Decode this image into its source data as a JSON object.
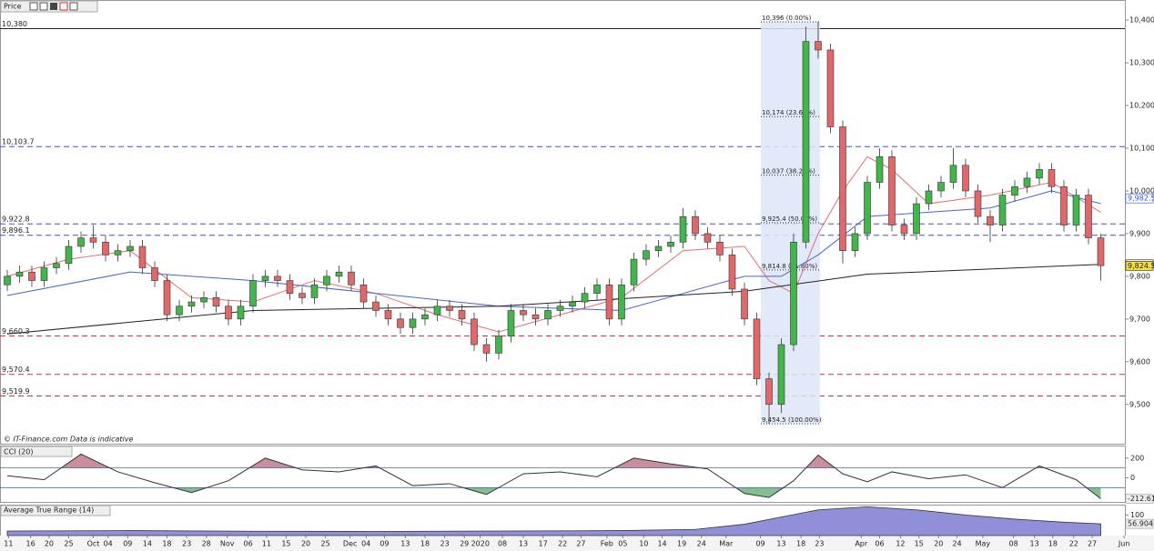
{
  "chart_data": [
    {
      "type": "candlestick",
      "title": "Price",
      "footnote": "© IT-Finance.com  Data is indicative",
      "up_color": "#43b54a",
      "down_color": "#e0686a",
      "open": [
        9780,
        9800,
        9810,
        9790,
        9820,
        9830,
        9870,
        9890,
        9880,
        9850,
        9860,
        9870,
        9820,
        9790,
        9710,
        9730,
        9740,
        9750,
        9730,
        9700,
        9730,
        9790,
        9800,
        9790,
        9760,
        9750,
        9780,
        9800,
        9810,
        9780,
        9740,
        9720,
        9700,
        9680,
        9700,
        9710,
        9730,
        9720,
        9700,
        9640,
        9620,
        9660,
        9720,
        9710,
        9700,
        9720,
        9730,
        9740,
        9760,
        9780,
        9700,
        9780,
        9840,
        9860,
        9870,
        9880,
        9940,
        9900,
        9880,
        9850,
        9770,
        9700,
        9560,
        9500,
        9640,
        9880,
        10350,
        10330,
        10150,
        9860,
        9900,
        10020,
        10080,
        9920,
        9900,
        9970,
        10000,
        10020,
        10060,
        10000,
        9940,
        9920,
        9990,
        10010,
        10030,
        10050,
        10010,
        9920,
        9990,
        9890
      ],
      "high": [
        9815,
        9825,
        9825,
        9835,
        9845,
        9885,
        9905,
        9920,
        9895,
        9875,
        9885,
        9885,
        9835,
        9805,
        9745,
        9755,
        9765,
        9765,
        9745,
        9745,
        9805,
        9815,
        9815,
        9805,
        9775,
        9795,
        9815,
        9825,
        9825,
        9795,
        9755,
        9735,
        9715,
        9715,
        9725,
        9745,
        9745,
        9735,
        9715,
        9655,
        9675,
        9735,
        9735,
        9725,
        9735,
        9745,
        9755,
        9775,
        9795,
        9795,
        9795,
        9855,
        9875,
        9885,
        9895,
        9960,
        9955,
        9915,
        9895,
        9865,
        9785,
        9715,
        9575,
        9655,
        9900,
        10385,
        10396,
        10345,
        10165,
        9915,
        10035,
        10100,
        10095,
        9935,
        9985,
        10015,
        10035,
        10100,
        10075,
        10015,
        9955,
        10005,
        10025,
        10045,
        10065,
        10065,
        10025,
        10005,
        10005,
        9900
      ],
      "low": [
        9765,
        9785,
        9775,
        9775,
        9805,
        9815,
        9855,
        9865,
        9835,
        9835,
        9845,
        9805,
        9775,
        9695,
        9695,
        9715,
        9725,
        9715,
        9685,
        9685,
        9715,
        9775,
        9775,
        9745,
        9735,
        9735,
        9765,
        9785,
        9765,
        9725,
        9705,
        9685,
        9665,
        9665,
        9685,
        9695,
        9705,
        9685,
        9625,
        9600,
        9605,
        9645,
        9695,
        9685,
        9685,
        9705,
        9715,
        9725,
        9745,
        9685,
        9685,
        9765,
        9825,
        9845,
        9855,
        9865,
        9885,
        9865,
        9835,
        9755,
        9685,
        9545,
        9454.5,
        9480,
        9625,
        9865,
        10310,
        10135,
        9830,
        9845,
        9885,
        10005,
        9905,
        9885,
        9885,
        9955,
        9985,
        10005,
        9985,
        9925,
        9880,
        9905,
        9975,
        9995,
        10015,
        9995,
        9905,
        9905,
        9875,
        9790
      ],
      "close": [
        9800,
        9810,
        9790,
        9820,
        9830,
        9870,
        9890,
        9880,
        9850,
        9860,
        9870,
        9820,
        9790,
        9710,
        9730,
        9740,
        9750,
        9730,
        9700,
        9730,
        9790,
        9800,
        9790,
        9760,
        9750,
        9780,
        9800,
        9810,
        9780,
        9740,
        9720,
        9700,
        9680,
        9700,
        9710,
        9730,
        9720,
        9700,
        9640,
        9620,
        9660,
        9720,
        9710,
        9700,
        9720,
        9730,
        9740,
        9760,
        9780,
        9700,
        9780,
        9840,
        9860,
        9870,
        9880,
        9940,
        9900,
        9880,
        9850,
        9770,
        9700,
        9560,
        9500,
        9640,
        9880,
        10350,
        10330,
        10150,
        9860,
        9900,
        10020,
        10080,
        9920,
        9900,
        9970,
        10000,
        10020,
        10060,
        10000,
        9940,
        9920,
        9990,
        10010,
        10030,
        10050,
        10010,
        9920,
        9990,
        9890,
        9825
      ],
      "xlim": [
        0,
        91
      ],
      "xticks": [
        {
          "value": 0.1,
          "label": "11"
        },
        {
          "value": 1.9,
          "label": "16"
        },
        {
          "value": 3.4,
          "label": "20"
        },
        {
          "value": 5.0,
          "label": "25"
        },
        {
          "value": 7.0,
          "label": "Oct"
        },
        {
          "value": 8.2,
          "label": "04"
        },
        {
          "value": 9.8,
          "label": "09"
        },
        {
          "value": 11.4,
          "label": "14"
        },
        {
          "value": 13.0,
          "label": "18"
        },
        {
          "value": 14.6,
          "label": "23"
        },
        {
          "value": 16.2,
          "label": "28"
        },
        {
          "value": 17.9,
          "label": "Nov"
        },
        {
          "value": 19.6,
          "label": "06"
        },
        {
          "value": 21.1,
          "label": "11"
        },
        {
          "value": 22.7,
          "label": "15"
        },
        {
          "value": 24.3,
          "label": "20"
        },
        {
          "value": 25.9,
          "label": "25"
        },
        {
          "value": 27.9,
          "label": "Dec"
        },
        {
          "value": 29.2,
          "label": "04"
        },
        {
          "value": 30.7,
          "label": "09"
        },
        {
          "value": 32.4,
          "label": "13"
        },
        {
          "value": 34.0,
          "label": "18"
        },
        {
          "value": 35.6,
          "label": "23"
        },
        {
          "value": 37.2,
          "label": "29"
        },
        {
          "value": 38.5,
          "label": "2020"
        },
        {
          "value": 40.3,
          "label": "08"
        },
        {
          "value": 42.0,
          "label": "13"
        },
        {
          "value": 43.6,
          "label": "17"
        },
        {
          "value": 45.2,
          "label": "22"
        },
        {
          "value": 46.7,
          "label": "27"
        },
        {
          "value": 48.8,
          "label": "Feb"
        },
        {
          "value": 50.1,
          "label": "05"
        },
        {
          "value": 51.8,
          "label": "10"
        },
        {
          "value": 53.3,
          "label": "14"
        },
        {
          "value": 54.9,
          "label": "19"
        },
        {
          "value": 56.5,
          "label": "24"
        },
        {
          "value": 58.5,
          "label": "Mar"
        },
        {
          "value": 61.3,
          "label": "09"
        },
        {
          "value": 63.0,
          "label": "13"
        },
        {
          "value": 64.6,
          "label": "18"
        },
        {
          "value": 66.1,
          "label": "23"
        },
        {
          "value": 69.5,
          "label": "Apr"
        },
        {
          "value": 71.0,
          "label": "06"
        },
        {
          "value": 72.7,
          "label": "12"
        },
        {
          "value": 74.2,
          "label": "15"
        },
        {
          "value": 75.8,
          "label": "20"
        },
        {
          "value": 77.3,
          "label": "24"
        },
        {
          "value": 79.4,
          "label": "May"
        },
        {
          "value": 81.9,
          "label": "08"
        },
        {
          "value": 83.6,
          "label": "13"
        },
        {
          "value": 85.1,
          "label": "18"
        },
        {
          "value": 86.8,
          "label": "22"
        },
        {
          "value": 88.3,
          "label": "27"
        },
        {
          "value": 90.9,
          "label": "Jun"
        }
      ],
      "ylim": [
        9408,
        10447
      ],
      "yticks": [
        {
          "value": 9500,
          "label": "9,500"
        },
        {
          "value": 9600,
          "label": "9,600"
        },
        {
          "value": 9700,
          "label": "9,700"
        },
        {
          "value": 9800,
          "label": "9,800"
        },
        {
          "value": 9900,
          "label": "9,900"
        },
        {
          "value": 10000,
          "label": "10,000"
        },
        {
          "value": 10100,
          "label": "10,100"
        },
        {
          "value": 10200,
          "label": "10,200"
        },
        {
          "value": 10300,
          "label": "10,300"
        },
        {
          "value": 10400,
          "label": "10,400"
        }
      ],
      "moving_averages": [
        {
          "color": "#e07070",
          "x": [
            0,
            5,
            10,
            15,
            20,
            25,
            30,
            35,
            40,
            45,
            50,
            55,
            60,
            62,
            64,
            66,
            68,
            70,
            72,
            75,
            80,
            85,
            89
          ],
          "values": [
            9800,
            9840,
            9860,
            9750,
            9740,
            9790,
            9760,
            9710,
            9670,
            9710,
            9750,
            9860,
            9870,
            9790,
            9760,
            9900,
            10000,
            10080,
            10050,
            9970,
            9990,
            10020,
            9950
          ]
        },
        {
          "color": "#4466cc",
          "x": [
            0,
            10,
            20,
            30,
            40,
            50,
            55,
            60,
            63,
            66,
            70,
            75,
            80,
            85,
            89
          ],
          "values": [
            9755,
            9810,
            9790,
            9760,
            9730,
            9720,
            9760,
            9800,
            9800,
            9850,
            9940,
            9950,
            9960,
            10000,
            9970
          ]
        },
        {
          "color": "#222222",
          "x": [
            0,
            20,
            40,
            60,
            70,
            89
          ],
          "values": [
            9665,
            9720,
            9730,
            9765,
            9805,
            9828
          ]
        }
      ],
      "levels": [
        {
          "value": 10380,
          "label": "10,380",
          "color": "#222222",
          "dashed": false
        },
        {
          "value": 10103.7,
          "label": "10,103.7",
          "color": "#4455bb",
          "dashed": true
        },
        {
          "value": 9922.8,
          "label": "9,922.8",
          "color": "#4455bb",
          "dashed": true
        },
        {
          "value": 9896.1,
          "label": "9,896.1",
          "color": "#4455bb",
          "dashed": true
        },
        {
          "value": 9660.3,
          "label": "9,660.3",
          "color": "#cc3344",
          "dashed": true
        },
        {
          "value": 9570.4,
          "label": "9,570.4",
          "color": "#cc3344",
          "dashed": true
        },
        {
          "value": 9519.9,
          "label": "9,519.9",
          "color": "#cc3344",
          "dashed": true
        }
      ],
      "fib_levels": [
        {
          "value": 10396,
          "label": "10,396 (0.00%)"
        },
        {
          "value": 10174,
          "label": "10,174 (23.60%)"
        },
        {
          "value": 10037,
          "label": "10,037 (38.20%)"
        },
        {
          "value": 9925.4,
          "label": "9,925.4 (50.00%)"
        },
        {
          "value": 9814.8,
          "label": "9,814.8 (61.80%)"
        },
        {
          "value": 9454.5,
          "label": "9,454.5 (100.00%)"
        }
      ],
      "price_tags": [
        {
          "value": 9982.5,
          "label": "9,982.5",
          "color": "#3355cc",
          "background": "#ffffff"
        },
        {
          "value": 9827.9,
          "label": "9,827.9",
          "color": "#222222",
          "background": "#ffffff"
        },
        {
          "value": 9824.5,
          "label": "9,824.5",
          "color": "#222222",
          "background": "#f3df3c"
        }
      ]
    },
    {
      "type": "line",
      "title": "CCI (20)",
      "color": "#333333",
      "overbought_color": "#c98f9a",
      "oversold_color": "#82c08c",
      "x": [
        0,
        3,
        6,
        9,
        12,
        15,
        18,
        21,
        24,
        27,
        30,
        33,
        36,
        39,
        42,
        45,
        48,
        51,
        54,
        57,
        60,
        62,
        64,
        66,
        68,
        70,
        72,
        75,
        78,
        81,
        84,
        87,
        89
      ],
      "values": [
        20,
        -20,
        240,
        60,
        -50,
        -150,
        -30,
        200,
        80,
        60,
        120,
        -80,
        -60,
        -170,
        40,
        60,
        10,
        200,
        140,
        90,
        -160,
        -200,
        -30,
        230,
        40,
        -40,
        60,
        -10,
        30,
        -100,
        120,
        -20,
        -212.61
      ],
      "ylim": [
        -245,
        318
      ],
      "yticks": [
        0,
        200
      ],
      "levels": [
        100,
        -100
      ]
    },
    {
      "type": "area",
      "title": "Average True Range (14)",
      "color": "#8f90d8",
      "x": [
        0,
        10,
        20,
        30,
        40,
        50,
        56,
        60,
        63,
        66,
        70,
        74,
        78,
        82,
        86,
        89
      ],
      "values": [
        22,
        24,
        21,
        20,
        22,
        24,
        30,
        55,
        90,
        125,
        140,
        125,
        100,
        80,
        65,
        56.904
      ],
      "ylim": [
        0,
        146
      ],
      "yticks": [
        100
      ]
    }
  ]
}
